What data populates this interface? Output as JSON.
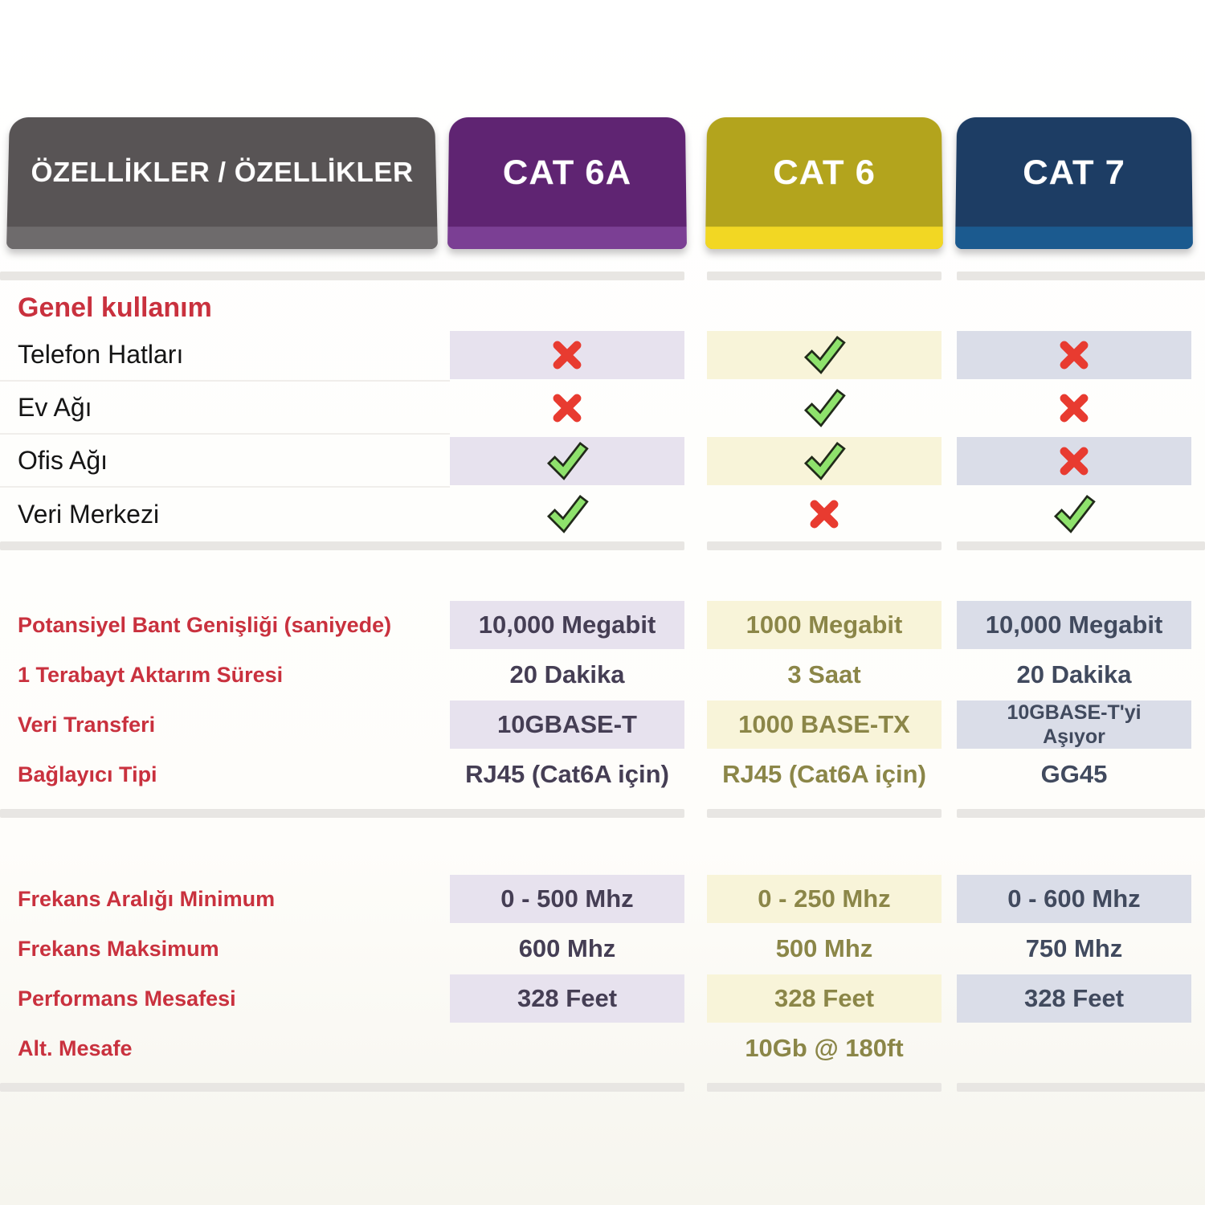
{
  "header": {
    "features_tab": "ÖZELLİKLER / ÖZELLİKLER",
    "columns": [
      {
        "label": "CAT 6A"
      },
      {
        "label": "CAT 6"
      },
      {
        "label": "CAT 7"
      }
    ]
  },
  "sections": [
    {
      "id": "general",
      "title": "Genel kullanım",
      "row_type": "icon",
      "rows": [
        {
          "label": "Telefon Hatları",
          "shaded": true,
          "values": [
            "no",
            "yes",
            "no"
          ]
        },
        {
          "label": "Ev Ağı",
          "shaded": false,
          "values": [
            "no",
            "yes",
            "no"
          ]
        },
        {
          "label": "Ofis Ağı",
          "shaded": true,
          "values": [
            "yes",
            "yes",
            "no"
          ]
        },
        {
          "label": "Veri Merkezi",
          "shaded": false,
          "values": [
            "yes",
            "no",
            "yes"
          ]
        }
      ]
    },
    {
      "id": "specs",
      "title": "",
      "row_type": "text",
      "rows": [
        {
          "label": "Potansiyel Bant Genişliği (saniyede)",
          "shaded": true,
          "values": [
            "10,000 Megabit",
            "1000 Megabit",
            "10,000 Megabit"
          ]
        },
        {
          "label": "1 Terabayt Aktarım Süresi",
          "shaded": false,
          "values": [
            "20 Dakika",
            "3 Saat",
            "20 Dakika"
          ]
        },
        {
          "label": "Veri Transferi",
          "shaded": true,
          "values": [
            "10GBASE-T",
            "1000 BASE-TX",
            "10GBASE-T'yi\nAşıyor"
          ]
        },
        {
          "label": "Bağlayıcı Tipi",
          "shaded": false,
          "values": [
            "RJ45 (Cat6A için)",
            "RJ45 (Cat6A için)",
            "GG45"
          ]
        }
      ]
    },
    {
      "id": "frequency",
      "title": "",
      "row_type": "text",
      "rows": [
        {
          "label": "Frekans Aralığı Minimum",
          "shaded": true,
          "values": [
            "0 - 500 Mhz",
            "0 - 250 Mhz",
            "0 - 600 Mhz"
          ]
        },
        {
          "label": "Frekans Maksimum",
          "shaded": false,
          "values": [
            "600 Mhz",
            "500 Mhz",
            "750 Mhz"
          ]
        },
        {
          "label": "Performans Mesafesi",
          "shaded": true,
          "values": [
            "328 Feet",
            "328 Feet",
            "328 Feet"
          ]
        },
        {
          "label": "Alt. Mesafe",
          "shaded": false,
          "values": [
            "",
            "10Gb @ 180ft",
            ""
          ]
        }
      ]
    }
  ],
  "icons": {
    "yes": "check-icon",
    "no": "cross-icon"
  },
  "colors": {
    "features_tab_bg": "#585455",
    "features_tab_strip": "#6e6b6c",
    "cat6a_tab_bg": "#5f2472",
    "cat6a_tab_strip": "#7b3f94",
    "cat6a_cell_bg": "#e7e2ee",
    "cat6a_text": "#453e54",
    "cat6_tab_bg": "#b3a41d",
    "cat6_tab_strip": "#f2d723",
    "cat6_cell_bg": "#f8f4d9",
    "cat6_text": "#8b8648",
    "cat7_tab_bg": "#1d3d64",
    "cat7_tab_strip": "#1b5a8f",
    "cat7_cell_bg": "#dadde8",
    "cat7_text": "#414a5e",
    "label_red": "#c9313e",
    "check_green": "#8ee26c",
    "check_outline": "#212a1a",
    "cross_red": "#e83b30",
    "divider_gray": "#e8e6e3"
  }
}
